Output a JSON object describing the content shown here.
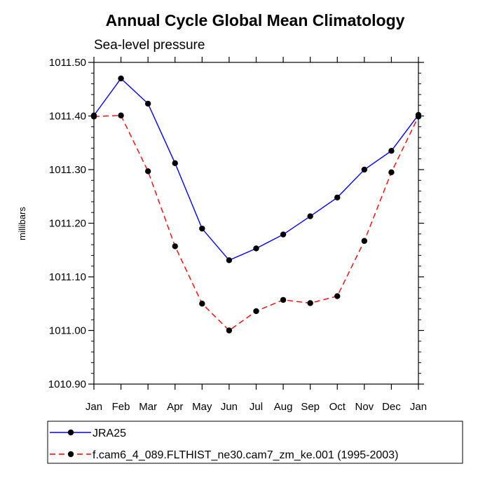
{
  "chart_data": {
    "type": "line",
    "title": "Annual Cycle Global Mean Climatology",
    "subtitle": "Sea-level pressure",
    "xlabel": "",
    "ylabel": "millibars",
    "categories": [
      "Jan",
      "Feb",
      "Mar",
      "Apr",
      "May",
      "Jun",
      "Jul",
      "Aug",
      "Sep",
      "Oct",
      "Nov",
      "Dec",
      "Jan"
    ],
    "ylim": [
      1010.9,
      1011.5
    ],
    "yticks": [
      "1011.50",
      "1011.40",
      "1011.30",
      "1011.20",
      "1011.10",
      "1011.00",
      "1010.90"
    ],
    "series": [
      {
        "name": "JRA25",
        "color": "#0000ff",
        "dash": "solid",
        "values": [
          1011.401,
          1011.47,
          1011.423,
          1011.312,
          1011.19,
          1011.131,
          1011.153,
          1011.179,
          1011.213,
          1011.248,
          1011.3,
          1011.335,
          1011.402
        ]
      },
      {
        "name": "f.cam6_4_089.FLTHIST_ne30.cam7_zm_ke.001 (1995-2003)",
        "color": "#ff0000",
        "dash": "dashed",
        "values": [
          1011.399,
          1011.401,
          1011.297,
          1011.157,
          1011.05,
          1011.0,
          1011.036,
          1011.057,
          1011.051,
          1011.064,
          1011.167,
          1011.295,
          1011.399
        ]
      }
    ],
    "marker_color": "#000000",
    "legend_position": "bottom"
  }
}
